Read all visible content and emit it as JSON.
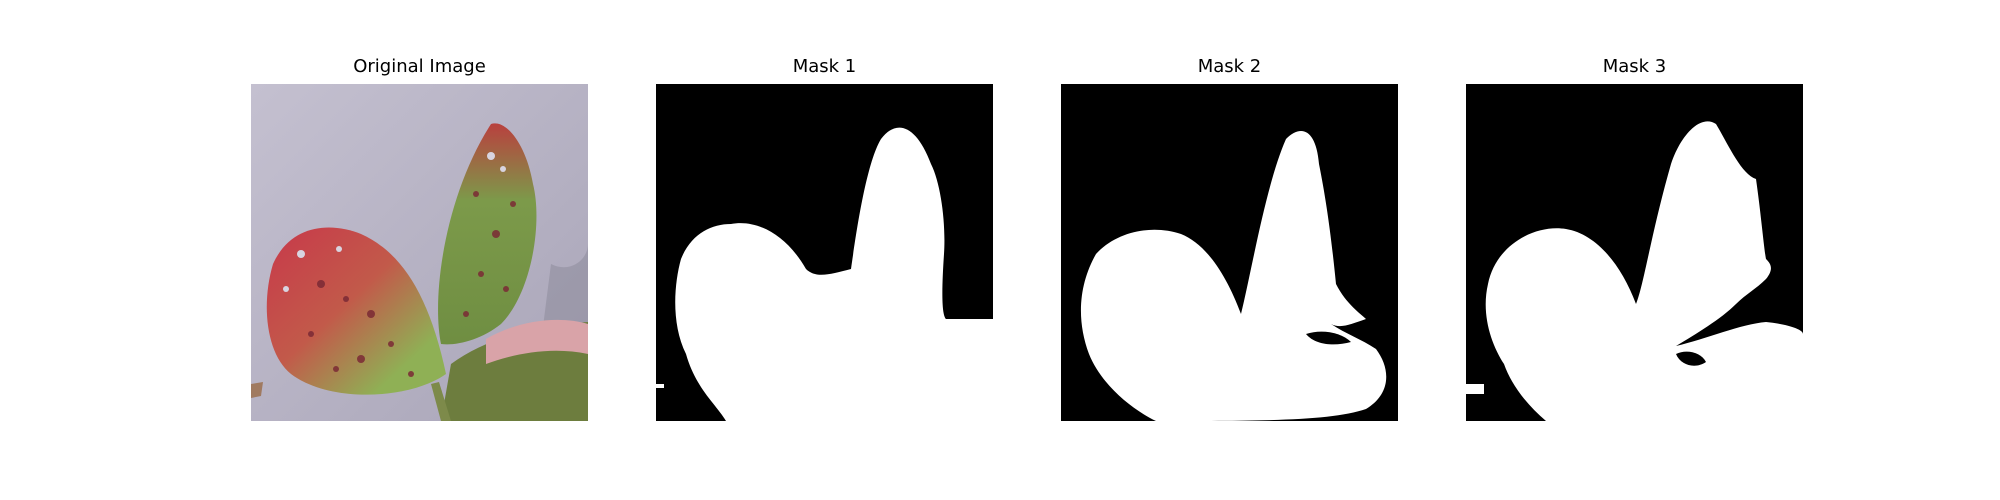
{
  "figure": {
    "panels": [
      {
        "title": "Original Image",
        "type": "photo",
        "subject": "leaf-photo"
      },
      {
        "title": "Mask 1",
        "type": "mask"
      },
      {
        "title": "Mask 2",
        "type": "mask"
      },
      {
        "title": "Mask 3",
        "type": "mask"
      }
    ],
    "colors": {
      "mask_background": "#000000",
      "mask_foreground": "#ffffff",
      "photo_background": "#b9b5c6",
      "leaf_red": "#c8384a",
      "leaf_green": "#8fb055",
      "leaf_spot": "#7b2a35"
    }
  }
}
